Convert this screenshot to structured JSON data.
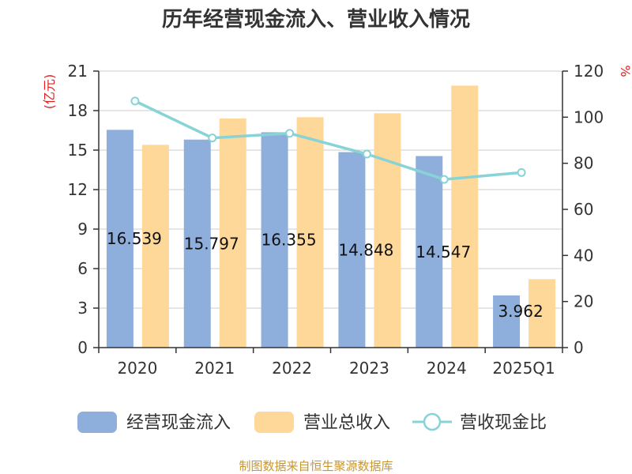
{
  "chart_data": {
    "type": "bar",
    "title": "历年经营现金流入、营业收入情况",
    "categories": [
      "2020",
      "2021",
      "2022",
      "2023",
      "2024",
      "2025Q1"
    ],
    "series": [
      {
        "name": "经营现金流入",
        "type": "bar",
        "axis": "left",
        "color": "#8eaedb",
        "values": [
          16.539,
          15.797,
          16.355,
          14.848,
          14.547,
          3.962
        ],
        "labels": [
          "16.539",
          "15.797",
          "16.355",
          "14.848",
          "14.547",
          "3.962"
        ]
      },
      {
        "name": "营业总收入",
        "type": "bar",
        "axis": "left",
        "color": "#fdd899",
        "values": [
          15.4,
          17.4,
          17.5,
          17.8,
          19.9,
          5.2
        ]
      },
      {
        "name": "营收现金比",
        "type": "line",
        "axis": "right",
        "color": "#88d3d6",
        "values": [
          107,
          91,
          93,
          84,
          73,
          76
        ]
      }
    ],
    "y_left": {
      "unit": "(亿元)",
      "min": 0,
      "max": 21,
      "ticks": [
        "0",
        "3",
        "6",
        "9",
        "12",
        "15",
        "18",
        "21"
      ]
    },
    "y_right": {
      "unit": "%",
      "min": 0,
      "max": 120,
      "ticks": [
        "0",
        "20",
        "40",
        "60",
        "80",
        "100",
        "120"
      ]
    },
    "grid": true,
    "legend_position": "bottom"
  },
  "footer": {
    "source": "制图数据来自恒生聚源数据库"
  }
}
